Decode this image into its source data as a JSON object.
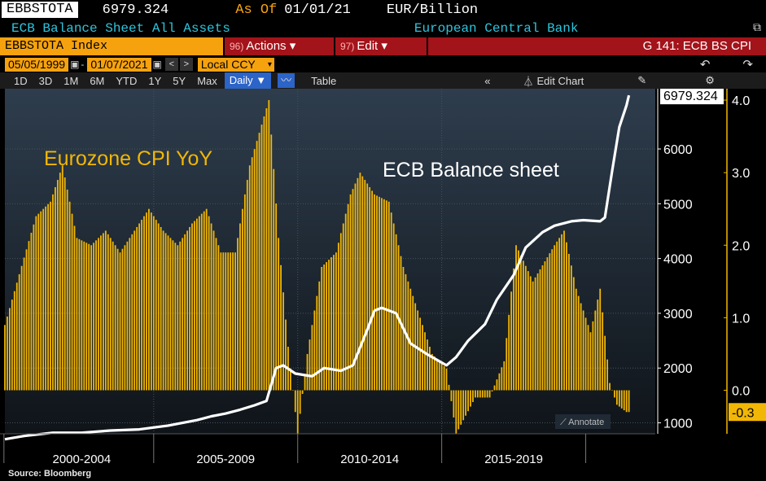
{
  "header": {
    "ticker": "EBBSTOTA",
    "last_value": "6979.324",
    "as_of_label": "As Of",
    "as_of_date": "01/01/21",
    "units": "EUR/Billion",
    "description": "ECB Balance Sheet All Assets",
    "source_name": "European Central Bank"
  },
  "toolbar": {
    "index_label": "EBBSTOTA Index",
    "actions_num": "96)",
    "actions_label": "Actions ▾",
    "edit_num": "97)",
    "edit_label": "Edit ▾",
    "chart_id": "G 141: ECB BS CPI",
    "start_date": "05/05/1999",
    "end_date": "01/07/2021",
    "currency": "Local CCY",
    "periods": [
      "1D",
      "3D",
      "1M",
      "6M",
      "YTD",
      "1Y",
      "5Y",
      "Max"
    ],
    "frequency": "Daily ▼",
    "table_label": "Table",
    "edit_chart_label": "Edit Chart",
    "annotate_label": "Annotate"
  },
  "footer": {
    "source": "Source: Bloomberg"
  },
  "colors": {
    "bg_top": "#2e3d4d",
    "bg_bottom": "#0f1419",
    "bars": "#f2b705",
    "line": "#ffffff",
    "cyan_text": "#2ec4dc",
    "orange": "#f6a20e",
    "red": "#a3131a"
  },
  "chart_data": {
    "type": "bar+line",
    "annotations": [
      "Eurozone CPI YoY",
      "ECB Balance sheet"
    ],
    "x_tick_labels": [
      "2000-2004",
      "2005-2009",
      "2010-2014",
      "2015-2019"
    ],
    "x_range": [
      "1999-05",
      "2021-01"
    ],
    "left_axis": {
      "ylim": [
        800,
        7100
      ],
      "ticks": [
        1000,
        2000,
        3000,
        4000,
        5000,
        6000
      ],
      "last_value_label": "6979.324"
    },
    "right_axis": {
      "ylim": [
        -0.6,
        4.0
      ],
      "ticks": [
        "4.0",
        "3.0",
        "2.0",
        "1.0",
        "0.0"
      ],
      "last_value_label": "-0.3"
    },
    "series": [
      {
        "name": "ECB Balance sheet",
        "kind": "line",
        "axis": "left",
        "points": [
          [
            "1999-05",
            700
          ],
          [
            "2000-01",
            760
          ],
          [
            "2001-01",
            820
          ],
          [
            "2002-01",
            820
          ],
          [
            "2003-01",
            860
          ],
          [
            "2004-01",
            880
          ],
          [
            "2005-01",
            950
          ],
          [
            "2006-01",
            1050
          ],
          [
            "2006-07",
            1120
          ],
          [
            "2007-01",
            1170
          ],
          [
            "2007-07",
            1240
          ],
          [
            "2008-01",
            1320
          ],
          [
            "2008-06",
            1400
          ],
          [
            "2008-10",
            2000
          ],
          [
            "2009-01",
            2050
          ],
          [
            "2009-06",
            1900
          ],
          [
            "2010-01",
            1850
          ],
          [
            "2010-06",
            2000
          ],
          [
            "2011-01",
            1950
          ],
          [
            "2011-06",
            2050
          ],
          [
            "2011-12",
            2700
          ],
          [
            "2012-03",
            3050
          ],
          [
            "2012-06",
            3100
          ],
          [
            "2012-12",
            3000
          ],
          [
            "2013-06",
            2450
          ],
          [
            "2014-01",
            2250
          ],
          [
            "2014-09",
            2050
          ],
          [
            "2015-01",
            2200
          ],
          [
            "2015-06",
            2500
          ],
          [
            "2016-01",
            2800
          ],
          [
            "2016-06",
            3250
          ],
          [
            "2017-01",
            3700
          ],
          [
            "2017-06",
            4200
          ],
          [
            "2018-01",
            4480
          ],
          [
            "2018-06",
            4600
          ],
          [
            "2019-01",
            4680
          ],
          [
            "2019-06",
            4700
          ],
          [
            "2020-01",
            4680
          ],
          [
            "2020-03",
            4750
          ],
          [
            "2020-06",
            5600
          ],
          [
            "2020-09",
            6400
          ],
          [
            "2020-12",
            6800
          ],
          [
            "2021-01",
            6979.324
          ]
        ]
      },
      {
        "name": "Eurozone CPI YoY",
        "kind": "bar",
        "axis": "right",
        "points": [
          [
            "1999-05",
            0.9
          ],
          [
            "1999-11",
            1.6
          ],
          [
            "2000-06",
            2.4
          ],
          [
            "2000-12",
            2.6
          ],
          [
            "2001-05",
            3.1
          ],
          [
            "2001-11",
            2.1
          ],
          [
            "2002-05",
            2.0
          ],
          [
            "2002-11",
            2.2
          ],
          [
            "2003-05",
            1.9
          ],
          [
            "2003-11",
            2.2
          ],
          [
            "2004-05",
            2.5
          ],
          [
            "2004-11",
            2.2
          ],
          [
            "2005-05",
            2.0
          ],
          [
            "2005-11",
            2.3
          ],
          [
            "2006-05",
            2.5
          ],
          [
            "2006-11",
            1.9
          ],
          [
            "2007-05",
            1.9
          ],
          [
            "2007-11",
            3.1
          ],
          [
            "2008-07",
            4.0
          ],
          [
            "2008-11",
            2.1
          ],
          [
            "2009-03",
            0.6
          ],
          [
            "2009-07",
            -0.6
          ],
          [
            "2009-11",
            0.5
          ],
          [
            "2010-05",
            1.7
          ],
          [
            "2010-11",
            1.9
          ],
          [
            "2011-05",
            2.7
          ],
          [
            "2011-09",
            3.0
          ],
          [
            "2012-03",
            2.7
          ],
          [
            "2012-09",
            2.6
          ],
          [
            "2013-03",
            1.7
          ],
          [
            "2013-09",
            1.1
          ],
          [
            "2014-03",
            0.5
          ],
          [
            "2014-09",
            0.3
          ],
          [
            "2015-01",
            -0.6
          ],
          [
            "2015-09",
            -0.1
          ],
          [
            "2016-03",
            -0.1
          ],
          [
            "2016-09",
            0.4
          ],
          [
            "2017-02",
            2.0
          ],
          [
            "2017-09",
            1.5
          ],
          [
            "2018-06",
            2.0
          ],
          [
            "2018-10",
            2.2
          ],
          [
            "2019-03",
            1.4
          ],
          [
            "2019-09",
            0.8
          ],
          [
            "2020-01",
            1.4
          ],
          [
            "2020-05",
            0.1
          ],
          [
            "2020-08",
            -0.2
          ],
          [
            "2020-12",
            -0.3
          ]
        ]
      }
    ]
  }
}
